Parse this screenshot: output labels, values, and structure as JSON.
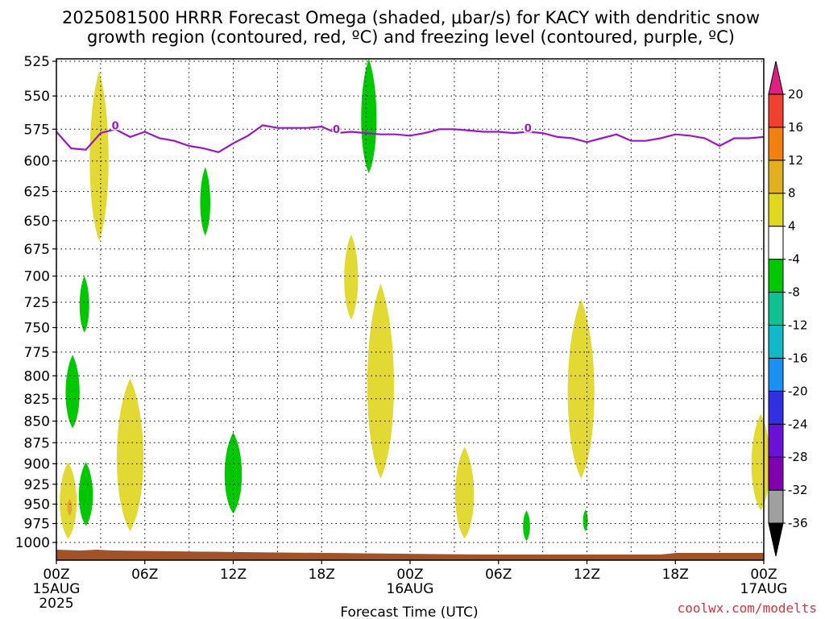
{
  "title": {
    "line1": "2025081500 HRRR Forecast Omega (shaded, μbar/s) for KACY with dendritic snow",
    "line2": "growth region (contoured, red, ºC) and freezing level (contoured, purple, ºC)"
  },
  "xlabel": "Forecast Time (UTC)",
  "credit": "coolwx.com/modelts",
  "colors": {
    "freezing_level": "#9a16c8",
    "terrain": "#a0522d",
    "grid": "#000000"
  },
  "chart_data": {
    "type": "heatmap",
    "title": "2025081500 HRRR Forecast Omega (shaded, μbar/s) for KACY with dendritic snow growth region (contoured, red, ºC) and freezing level (contoured, purple, ºC)",
    "xlabel": "Forecast Time (UTC)",
    "ylabel": "",
    "x_unit": "forecast hour",
    "xlim": [
      0,
      48
    ],
    "y_unit": "hPa",
    "y_reversed": true,
    "ylim": [
      1000,
      525
    ],
    "y_ticks": [
      525,
      550,
      575,
      600,
      625,
      650,
      675,
      700,
      725,
      750,
      775,
      800,
      825,
      850,
      875,
      900,
      925,
      950,
      975,
      1000
    ],
    "x_ticks": [
      {
        "hour": 0,
        "label": "00Z",
        "date": "15AUG",
        "year": "2025"
      },
      {
        "hour": 6,
        "label": "06Z"
      },
      {
        "hour": 12,
        "label": "12Z"
      },
      {
        "hour": 18,
        "label": "18Z"
      },
      {
        "hour": 24,
        "label": "00Z",
        "date": "16AUG"
      },
      {
        "hour": 30,
        "label": "06Z"
      },
      {
        "hour": 36,
        "label": "12Z"
      },
      {
        "hour": 42,
        "label": "18Z"
      },
      {
        "hour": 48,
        "label": "00Z",
        "date": "17AUG"
      }
    ],
    "grid": true,
    "colorbar": {
      "position": "right",
      "colors": [
        "#000000",
        "#a0a0a0",
        "#8000b0",
        "#6a10d8",
        "#3030e0",
        "#1a90f0",
        "#10b8c8",
        "#10c090",
        "#00c800",
        "#ffffff",
        "#e0d820",
        "#e0b020",
        "#f08010",
        "#f04030",
        "#e02080"
      ],
      "tick_labels": [
        "-36",
        "-32",
        "-28",
        "-24",
        "-20",
        "-16",
        "-12",
        "-8",
        "-4",
        "4",
        "8",
        "12",
        "16",
        "20"
      ]
    },
    "series": [
      {
        "name": "freezing level",
        "contour_label": "0",
        "x": [
          0,
          1,
          2,
          3,
          4,
          5,
          6,
          7,
          8,
          9,
          10,
          11,
          12,
          13,
          14,
          15,
          16,
          17,
          18,
          19,
          20,
          21,
          22,
          23,
          24,
          25,
          26,
          27,
          28,
          29,
          30,
          31,
          32,
          33,
          34,
          35,
          36,
          37,
          38,
          39,
          40,
          41,
          42,
          43,
          44,
          45,
          46,
          47,
          48
        ],
        "y": [
          577,
          590,
          591,
          578,
          575,
          581,
          577,
          582,
          584,
          588,
          590,
          593,
          586,
          580,
          572,
          574,
          574,
          574,
          573,
          578,
          577,
          578,
          579,
          579,
          580,
          578,
          575,
          575,
          576,
          577,
          577,
          578,
          577,
          578,
          581,
          582,
          585,
          582,
          579,
          584,
          584,
          582,
          579,
          580,
          582,
          588,
          582,
          582,
          581
        ]
      }
    ],
    "omega_regions": [
      {
        "sign": "upward",
        "range": "-8 to -4",
        "hour_center": 21.2,
        "p_top": 522,
        "p_bottom": 610
      },
      {
        "sign": "upward",
        "range": "-8 to -4",
        "hour_center": 10.1,
        "p_top": 605,
        "p_bottom": 663
      },
      {
        "sign": "upward",
        "range": "-8 to -4",
        "hour_center": 1.9,
        "p_top": 700,
        "p_bottom": 755
      },
      {
        "sign": "upward",
        "range": "-8 to -4",
        "hour_center": 1.1,
        "p_top": 778,
        "p_bottom": 858
      },
      {
        "sign": "upward",
        "range": "-8 to -4",
        "hour_center": 12.0,
        "p_top": 863,
        "p_bottom": 962
      },
      {
        "sign": "upward",
        "range": "-8 to -4",
        "hour_center": 2.0,
        "p_top": 898,
        "p_bottom": 978
      },
      {
        "sign": "upward",
        "range": "-8 to -4",
        "hour_center": 31.9,
        "p_top": 958,
        "p_bottom": 998
      },
      {
        "sign": "upward",
        "range": "-8 to -4",
        "hour_center": 35.9,
        "p_top": 957,
        "p_bottom": 985
      },
      {
        "sign": "downward",
        "range": "4 to 8",
        "hour_center": 2.9,
        "p_top": 532,
        "p_bottom": 668
      },
      {
        "sign": "downward",
        "range": "4 to 8",
        "hour_center": 20.0,
        "p_top": 662,
        "p_bottom": 742
      },
      {
        "sign": "downward",
        "range": "4 to 8",
        "hour_center": 22.0,
        "p_top": 707,
        "p_bottom": 918
      },
      {
        "sign": "downward",
        "range": "4 to 8",
        "hour_center": 35.6,
        "p_top": 722,
        "p_bottom": 918
      },
      {
        "sign": "downward",
        "range": "4 to 8",
        "hour_center": 47.8,
        "p_top": 842,
        "p_bottom": 958
      },
      {
        "sign": "downward",
        "range": "4 to 8",
        "hour_center": 5.0,
        "p_top": 803,
        "p_bottom": 985
      },
      {
        "sign": "downward",
        "range": "4 to 8",
        "hour_center": 0.8,
        "p_top": 898,
        "p_bottom": 995
      },
      {
        "sign": "downward",
        "range": "4 to 8",
        "hour_center": 27.7,
        "p_top": 880,
        "p_bottom": 995
      },
      {
        "sign": "downward",
        "range": "8 to 12",
        "hour_center": 0.9,
        "p_top": 943,
        "p_bottom": 965
      }
    ]
  }
}
